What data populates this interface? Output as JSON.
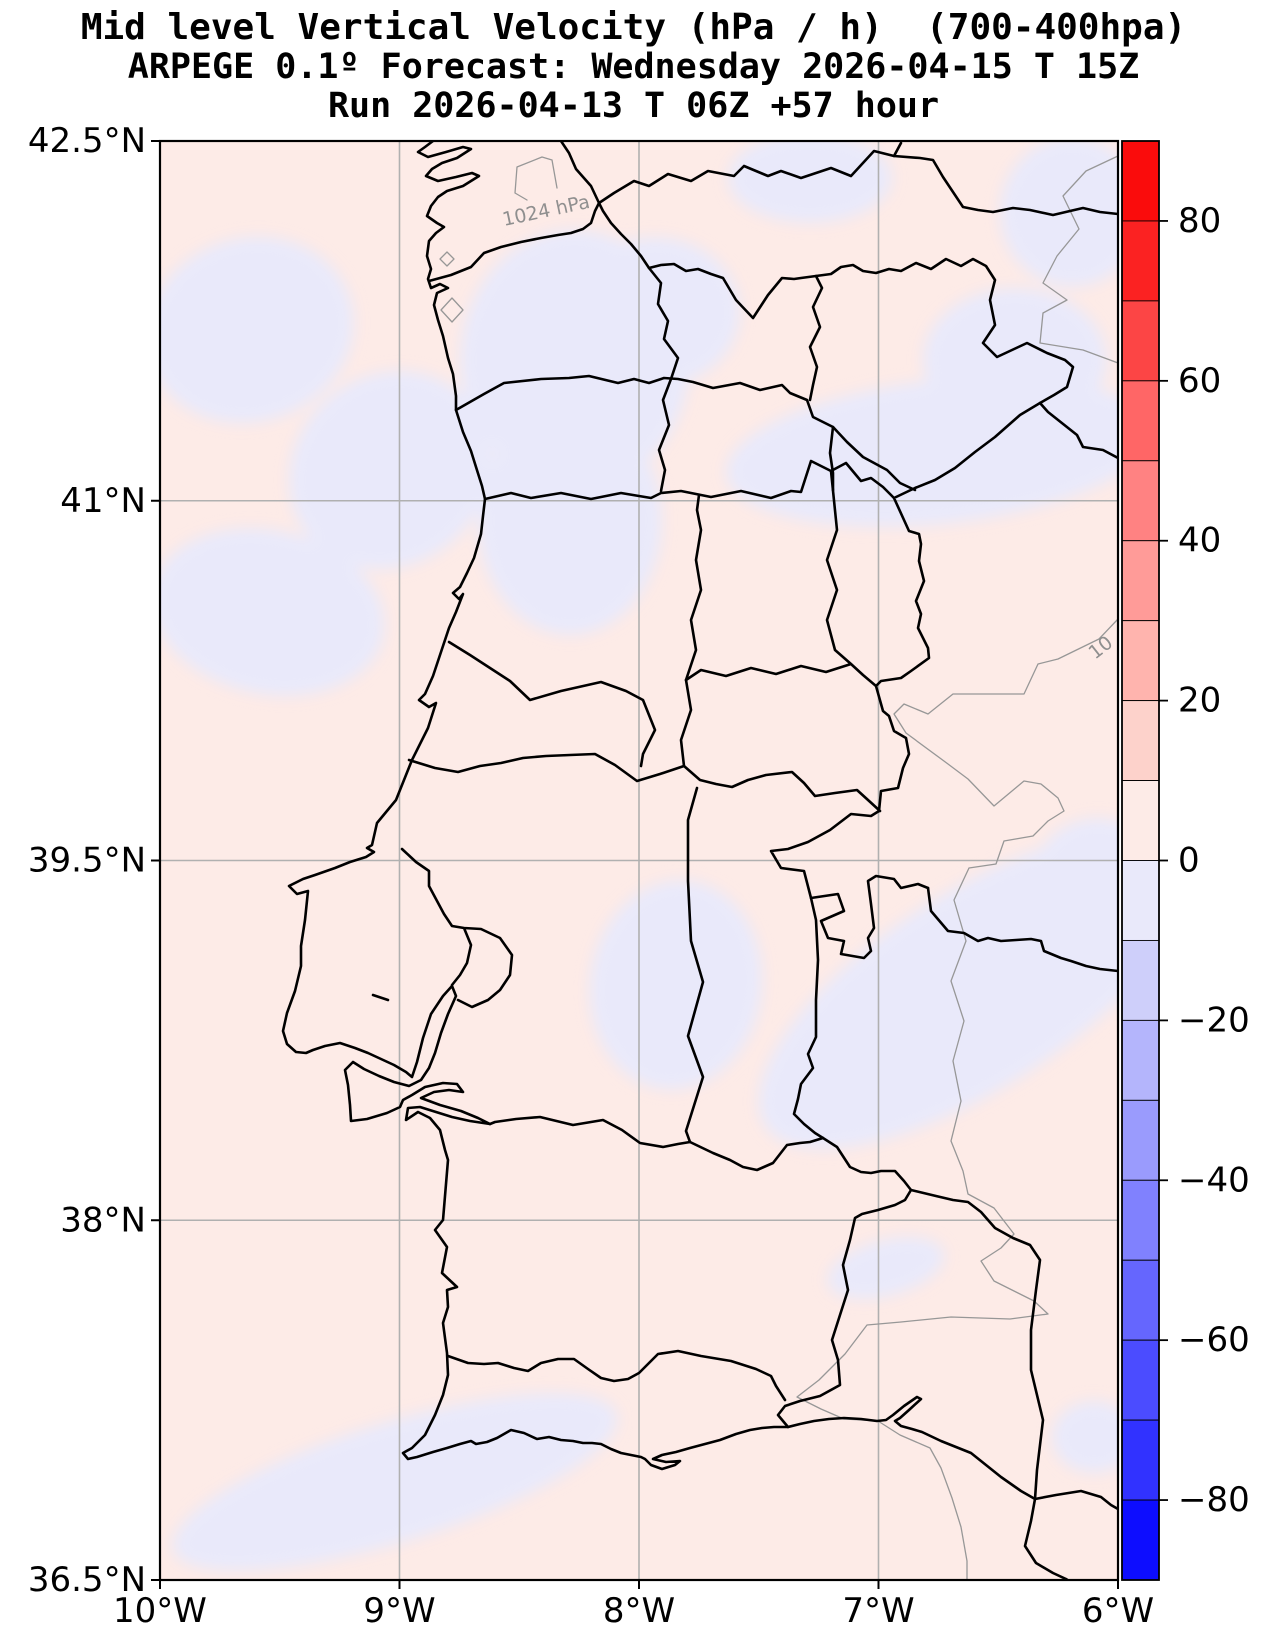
{
  "title": {
    "line1": "Mid level Vertical Velocity (hPa / h)  (700-400hpa)",
    "line2": "ARPEGE 0.1º Forecast: Wednesday 2026-04-15 T 15Z",
    "line3": "Run 2026-04-13 T 06Z +57 hour"
  },
  "axes": {
    "lat_ticks": [
      {
        "label": "42.5°N",
        "value": 42.5
      },
      {
        "label": "41°N",
        "value": 41.0
      },
      {
        "label": "39.5°N",
        "value": 39.5
      },
      {
        "label": "38°N",
        "value": 38.0
      },
      {
        "label": "36.5°N",
        "value": 36.5
      }
    ],
    "lon_ticks": [
      {
        "label": "10°W",
        "value": -10
      },
      {
        "label": "9°W",
        "value": -9
      },
      {
        "label": "8°W",
        "value": -8
      },
      {
        "label": "7°W",
        "value": -7
      },
      {
        "label": "6°W",
        "value": -6
      }
    ]
  },
  "colorbar": {
    "min": -90,
    "max": 90,
    "step": 10,
    "units": "hPa / h",
    "segments": [
      {
        "from": 80,
        "to": 90,
        "color": "#fa0c0c"
      },
      {
        "from": 70,
        "to": 80,
        "color": "#fb2222"
      },
      {
        "from": 60,
        "to": 70,
        "color": "#fc4545"
      },
      {
        "from": 50,
        "to": 60,
        "color": "#ff6666"
      },
      {
        "from": 40,
        "to": 50,
        "color": "#ff8282"
      },
      {
        "from": 30,
        "to": 40,
        "color": "#ff9b98"
      },
      {
        "from": 20,
        "to": 30,
        "color": "#ffb4ae"
      },
      {
        "from": 10,
        "to": 20,
        "color": "#fdd2cb"
      },
      {
        "from": 0,
        "to": 10,
        "color": "#fdebe7"
      },
      {
        "from": -10,
        "to": 0,
        "color": "#e9e9fa"
      },
      {
        "from": -20,
        "to": -10,
        "color": "#cecffa"
      },
      {
        "from": -30,
        "to": -20,
        "color": "#b4b5fc"
      },
      {
        "from": -40,
        "to": -30,
        "color": "#9a9bfd"
      },
      {
        "from": -50,
        "to": -40,
        "color": "#8081fe"
      },
      {
        "from": -60,
        "to": -50,
        "color": "#6566fe"
      },
      {
        "from": -70,
        "to": -60,
        "color": "#4b4cff"
      },
      {
        "from": -80,
        "to": -70,
        "color": "#3132ff"
      },
      {
        "from": -90,
        "to": -80,
        "color": "#0d0dff"
      }
    ],
    "ticks": [
      {
        "label": "80",
        "value": 80
      },
      {
        "label": "60",
        "value": 60
      },
      {
        "label": "40",
        "value": 40
      },
      {
        "label": "20",
        "value": 20
      },
      {
        "label": "0",
        "value": 0
      },
      {
        "label": "−20",
        "value": -20
      },
      {
        "label": "−40",
        "value": -40
      },
      {
        "label": "−60",
        "value": -60
      },
      {
        "label": "−80",
        "value": -80
      }
    ]
  },
  "map": {
    "isobar_label": "1024 hPa",
    "isobar_label_fragment": "10",
    "colors": {
      "positive_fill": "#fdebe7",
      "negative_fill": "#e9e9fa",
      "coastline": "#000000",
      "spain_provinces": "#979797",
      "grid": "#b0b0b0",
      "isobar": "#a0a0a0"
    }
  }
}
